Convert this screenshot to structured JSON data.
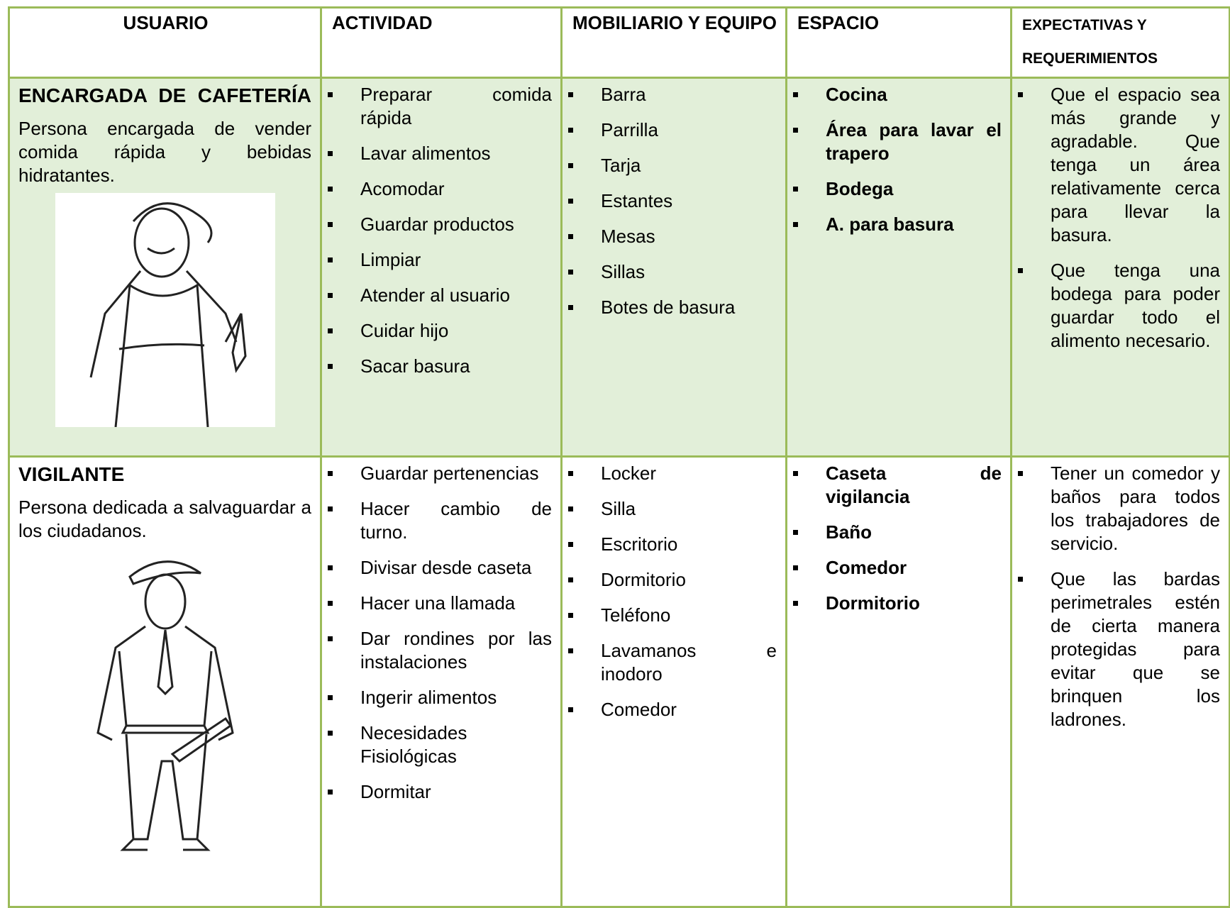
{
  "header": [
    "USUARIO",
    "ACTIVIDAD",
    "MOBILIARIO Y EQUIPO",
    "ESPACIO",
    "EXPECTATIVAS Y REQUERIMIENTOS"
  ],
  "rows": [
    {
      "user": "ENCARGADA DE CAFETERÍA",
      "description": "Persona encargada de vender comida rápida y bebidas hidratantes.",
      "activities": [
        "Preparar comida rápida",
        "Lavar alimentos",
        "Acomodar",
        "Guardar productos",
        "Limpiar",
        "Atender al usuario",
        "Cuidar hijo",
        "Sacar basura"
      ],
      "furniture": [
        "Barra",
        "Parrilla",
        "Tarja",
        "Estantes",
        "Mesas",
        "Sillas",
        "Botes de basura"
      ],
      "spaces": [
        "Cocina",
        "Área para lavar el trapero",
        "Bodega",
        "A. para basura"
      ],
      "expectations": [
        "Que el espacio sea más grande y agradable. Que tenga un área relativamente cerca para llevar la basura.",
        "Que tenga una bodega para poder guardar todo el alimento necesario."
      ]
    },
    {
      "user": "VIGILANTE",
      "description": "Persona dedicada a salvaguardar a los ciudadanos.",
      "activities": [
        "Guardar pertenencias",
        "Hacer cambio de turno.",
        "Divisar desde caseta",
        "Hacer una llamada",
        "Dar rondines por las instalaciones",
        "Ingerir alimentos",
        "Necesidades Fisiológicas",
        "Dormitar"
      ],
      "furniture": [
        "Locker",
        "Silla",
        "Escritorio",
        "Dormitorio",
        "Teléfono",
        "Lavamanos e inodoro",
        "Comedor"
      ],
      "spaces": [
        "Caseta de vigilancia",
        "Baño",
        "Comedor",
        "Dormitorio"
      ],
      "expectations": [
        "Tener un comedor y baños para todos los trabajadores de servicio.",
        "Que las bardas perimetrales estén de cierta manera protegidas para evitar que se brinquen los ladrones."
      ]
    }
  ]
}
